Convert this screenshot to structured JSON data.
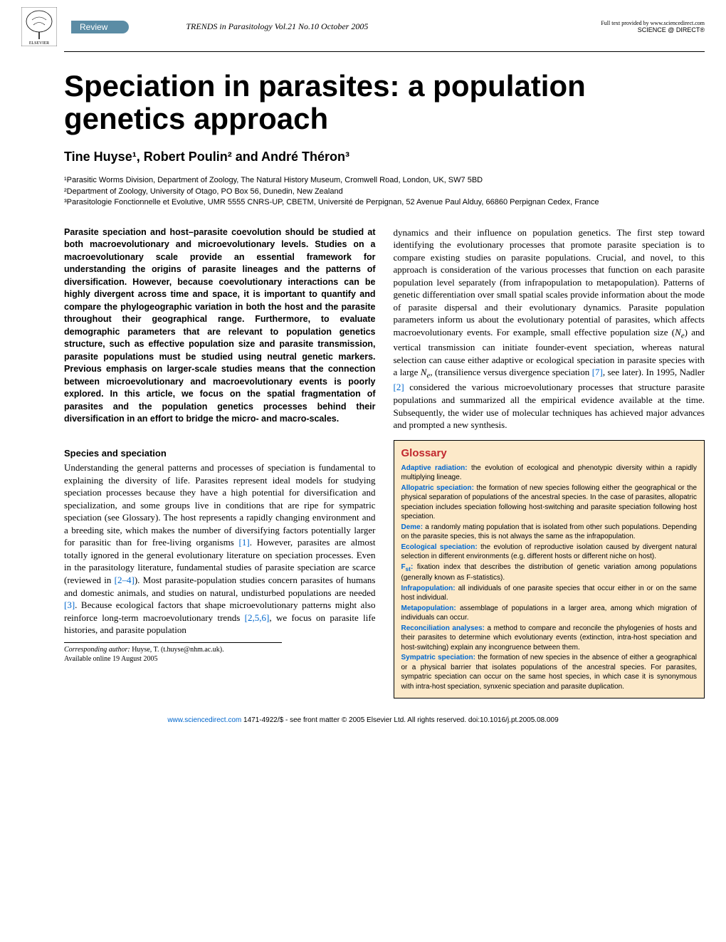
{
  "header": {
    "review_label": "Review",
    "journal_line": "TRENDS in Parasitology   Vol.21 No.10 October 2005",
    "science_direct_top": "Full text provided by www.sciencedirect.com",
    "science_direct_logo": "SCIENCE @ DIRECT®"
  },
  "title": "Speciation in parasites: a population genetics approach",
  "authors": "Tine Huyse¹, Robert Poulin² and André Théron³",
  "affiliations": {
    "a1": "¹Parasitic Worms Division, Department of Zoology, The Natural History Museum, Cromwell Road, London, UK, SW7 5BD",
    "a2": "²Department of Zoology, University of Otago, PO Box 56, Dunedin, New Zealand",
    "a3": "³Parasitologie Fonctionnelle et Evolutive, UMR 5555 CNRS-UP, CBETM, Université de Perpignan, 52 Avenue Paul Alduy, 66860 Perpignan Cedex, France"
  },
  "abstract": "Parasite speciation and host–parasite coevolution should be studied at both macroevolutionary and microevolutionary levels. Studies on a macroevolutionary scale provide an essential framework for understanding the origins of parasite lineages and the patterns of diversification. However, because coevolutionary interactions can be highly divergent across time and space, it is important to quantify and compare the phylogeographic variation in both the host and the parasite throughout their geographical range. Furthermore, to evaluate demographic parameters that are relevant to population genetics structure, such as effective population size and parasite transmission, parasite populations must be studied using neutral genetic markers. Previous emphasis on larger-scale studies means that the connection between microevolutionary and macroevolutionary events is poorly explored. In this article, we focus on the spatial fragmentation of parasites and the population genetics processes behind their diversification in an effort to bridge the micro- and macro-scales.",
  "section1": {
    "heading": "Species and speciation",
    "text": "Understanding the general patterns and processes of speciation is fundamental to explaining the diversity of life. Parasites represent ideal models for studying speciation processes because they have a high potential for diversification and specialization, and some groups live in conditions that are ripe for sympatric speciation (see Glossary). The host represents a rapidly changing environment and a breeding site, which makes the number of diversifying factors potentially larger for parasitic than for free-living organisms [1]. However, parasites are almost totally ignored in the general evolutionary literature on speciation processes. Even in the parasitology literature, fundamental studies of parasite speciation are scarce (reviewed in [2–4]). Most parasite-population studies concern parasites of humans and domestic animals, and studies on natural, undisturbed populations are needed [3]. Because ecological factors that shape microevolutionary patterns might also reinforce long-term macroevolutionary trends [2,5,6], we focus on parasite life histories, and parasite population"
  },
  "col2_text": "dynamics and their influence on population genetics. The first step toward identifying the evolutionary processes that promote parasite speciation is to compare existing studies on parasite populations. Crucial, and novel, to this approach is consideration of the various processes that function on each parasite population level separately (from infrapopulation to metapopulation). Patterns of genetic differentiation over small spatial scales provide information about the mode of parasite dispersal and their evolutionary dynamics. Parasite population parameters inform us about the evolutionary potential of parasites, which affects macroevolutionary events. For example, small effective population size (Nₑ) and vertical transmission can initiate founder-event speciation, whereas natural selection can cause either adaptive or ecological speciation in parasite species with a large Nₑ, (transilience versus divergence speciation [7], see later). In 1995, Nadler [2] considered the various microevolutionary processes that structure parasite populations and summarized all the empirical evidence available at the time. Subsequently, the wider use of molecular techniques has achieved major advances and prompted a new synthesis.",
  "glossary": {
    "title": "Glossary",
    "background_color": "#fce9c9",
    "title_color": "#c1272d",
    "term_color": "#0066cc",
    "entries": [
      {
        "term": "Adaptive radiation:",
        "def": " the evolution of ecological and phenotypic diversity within a rapidly multiplying lineage."
      },
      {
        "term": "Allopatric speciation:",
        "def": " the formation of new species following either the geographical or the physical separation of populations of the ancestral species. In the case of parasites, allopatric speciation includes speciation following host-switching and parasite speciation following host speciation."
      },
      {
        "term": "Deme:",
        "def": " a randomly mating population that is isolated from other such populations. Depending on the parasite species, this is not always the same as the infrapopulation."
      },
      {
        "term": "Ecological speciation:",
        "def": " the evolution of reproductive isolation caused by divergent natural selection in different environments (e.g. different hosts or different niche on host)."
      },
      {
        "term": "Fst:",
        "def": " fixation index that describes the distribution of genetic variation among populations (generally known as F-statistics)."
      },
      {
        "term": "Infrapopulation:",
        "def": " all individuals of one parasite species that occur either in or on the same host individual."
      },
      {
        "term": "Metapopulation:",
        "def": " assemblage of populations in a larger area, among which migration of individuals can occur."
      },
      {
        "term": "Reconciliation analyses:",
        "def": " a method to compare and reconcile the phylogenies of hosts and their parasites to determine which evolutionary events (extinction, intra-host speciation and host-switching) explain any incongruence between them."
      },
      {
        "term": "Sympatric speciation:",
        "def": " the formation of new species in the absence of either a geographical or a physical barrier that isolates populations of the ancestral species. For parasites, sympatric speciation can occur on the same host species, in which case it is synonymous with intra-host speciation, synxenic speciation and parasite duplication."
      }
    ]
  },
  "corresponding": {
    "label": "Corresponding author: ",
    "text": "Huyse, T. (t.huyse@nhm.ac.uk).",
    "available": "Available online 19 August 2005"
  },
  "footer": {
    "url": "www.sciencedirect.com",
    "copyright": "   1471-4922/$ - see front matter © 2005 Elsevier Ltd. All rights reserved. doi:10.1016/j.pt.2005.08.009"
  },
  "colors": {
    "review_bg": "#5b8ca5",
    "ref_link": "#0066cc"
  }
}
